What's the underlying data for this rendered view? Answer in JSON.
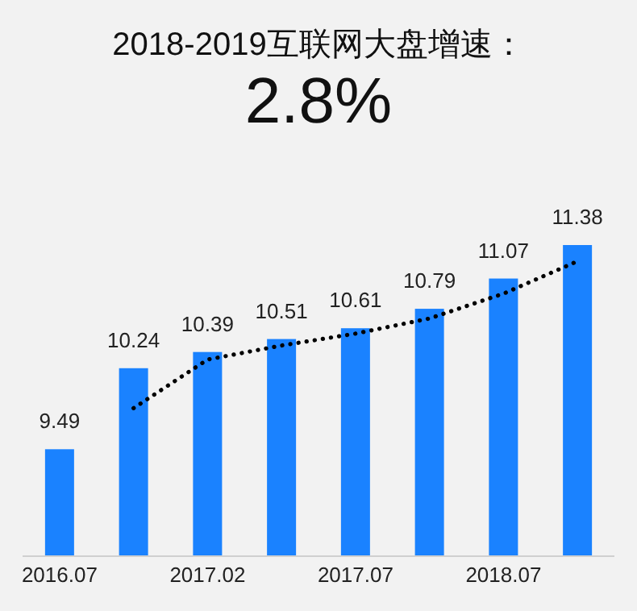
{
  "chart_data": {
    "type": "bar",
    "title": "2018-2019互联网大盘增速：",
    "subtitle": "2.8%",
    "categories": [
      "2016.07",
      null,
      "2017.02",
      null,
      "2017.07",
      null,
      "2018.07",
      null
    ],
    "series": [
      {
        "color": "#1a82ff",
        "values": [
          9.49,
          10.24,
          10.39,
          10.51,
          10.61,
          10.79,
          11.07,
          11.38
        ],
        "value_labels": [
          "9.49",
          "10.24",
          "10.39",
          "10.51",
          "10.61",
          "10.79",
          "11.07",
          "11.38"
        ]
      },
      {
        "type": "line",
        "color": "#000000",
        "line_style": "dotted",
        "values": [
          null,
          9.87,
          10.32,
          10.45,
          10.56,
          10.7,
          10.93,
          11.23
        ]
      }
    ],
    "ylim": [
      8.5,
      11.38
    ],
    "tick_labels": "x"
  }
}
